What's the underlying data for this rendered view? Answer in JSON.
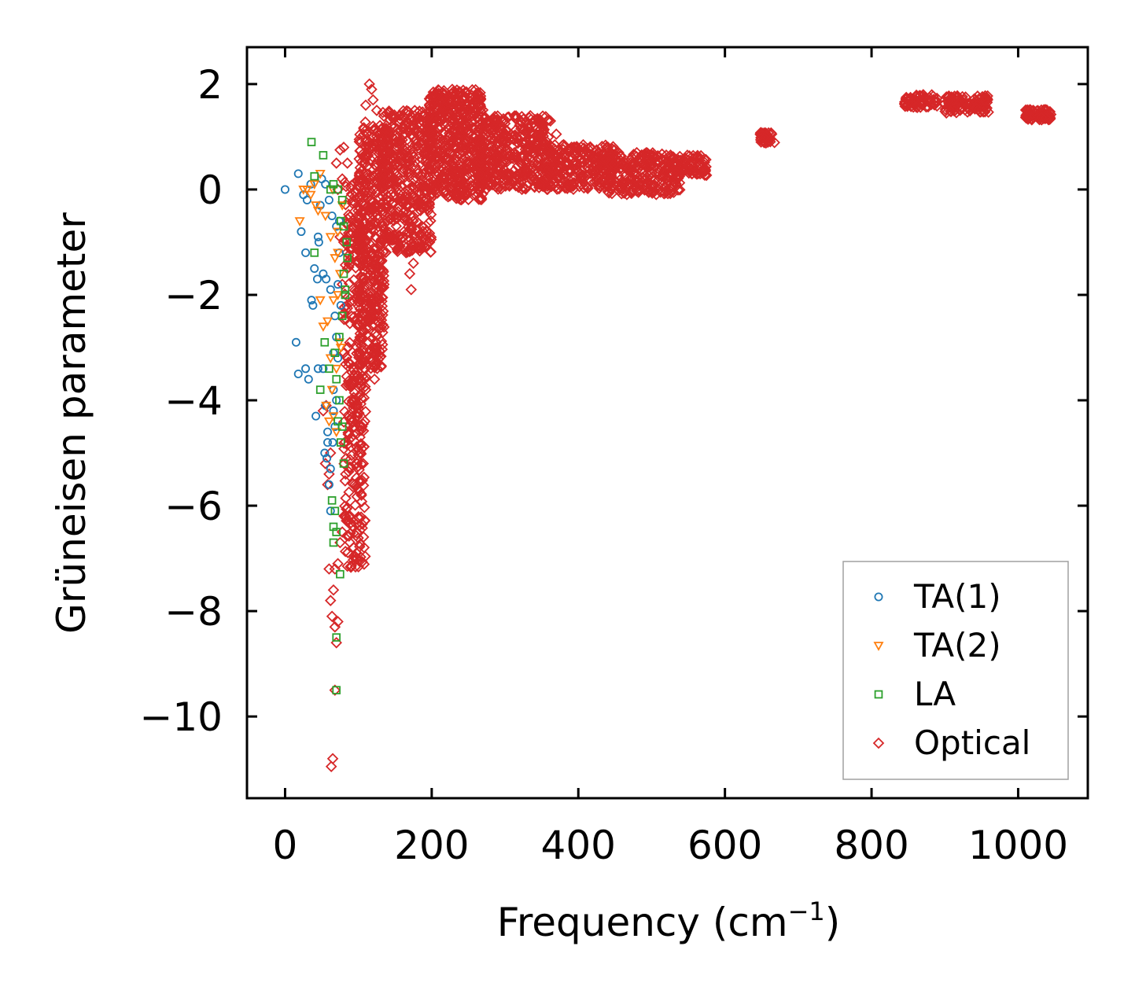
{
  "chart_data": {
    "type": "scatter",
    "xlabel": "Frequency (cm",
    "xlabel_sup": "−1",
    "xlabel_end": ")",
    "ylabel": "Grüneisen parameter",
    "xlim": [
      -52,
      1095
    ],
    "ylim": [
      -11.55,
      2.7
    ],
    "xticks": [
      0,
      200,
      400,
      600,
      800,
      1000
    ],
    "yticks": [
      2,
      0,
      -2,
      -4,
      -6,
      -8,
      -10
    ],
    "ytick_labels": [
      "2",
      "0",
      "−2",
      "−4",
      "−6",
      "−8",
      "−10"
    ],
    "legend_position": "lower-right",
    "series": [
      {
        "name": "TA(1)",
        "color": "#1f77b4",
        "marker": "circle",
        "points": [
          [
            0,
            0
          ],
          [
            18,
            0.3
          ],
          [
            25,
            -0.1
          ],
          [
            30,
            -0.2
          ],
          [
            35,
            0.1
          ],
          [
            22,
            -0.8
          ],
          [
            28,
            -1.2
          ],
          [
            40,
            -1.5
          ],
          [
            45,
            -0.9
          ],
          [
            36,
            -2.1
          ],
          [
            38,
            -2.2
          ],
          [
            15,
            -2.9
          ],
          [
            18,
            -3.5
          ],
          [
            28,
            -3.4
          ],
          [
            32,
            -3.6
          ],
          [
            45,
            -3.4
          ],
          [
            42,
            -4.3
          ],
          [
            52,
            -3.4
          ],
          [
            55,
            -4.1
          ],
          [
            57,
            -5.1
          ],
          [
            60,
            -5.6
          ],
          [
            62,
            -5.3
          ],
          [
            58,
            -4.6
          ],
          [
            65,
            -4.8
          ],
          [
            68,
            -4.5
          ],
          [
            70,
            -4.0
          ],
          [
            66,
            -3.1
          ],
          [
            68,
            -2.4
          ],
          [
            72,
            -1.8
          ],
          [
            74,
            -1.2
          ],
          [
            70,
            -0.7
          ],
          [
            64,
            -0.5
          ],
          [
            60,
            -0.2
          ],
          [
            55,
            0.1
          ],
          [
            50,
            0.2
          ],
          [
            48,
            -0.3
          ],
          [
            52,
            -1.6
          ],
          [
            56,
            -1.7
          ],
          [
            62,
            -1.9
          ],
          [
            66,
            -3.8
          ],
          [
            72,
            -3.2
          ],
          [
            62,
            -6.1
          ],
          [
            58,
            -4.8
          ],
          [
            54,
            -5.0
          ],
          [
            66,
            -4.2
          ],
          [
            70,
            -2.8
          ],
          [
            76,
            -2.2
          ],
          [
            74,
            -0.6
          ],
          [
            44,
            -1.7
          ],
          [
            46,
            -1.0
          ]
        ]
      },
      {
        "name": "TA(2)",
        "color": "#ff7f0e",
        "marker": "triangle-down",
        "points": [
          [
            20,
            -0.6
          ],
          [
            25,
            0.0
          ],
          [
            35,
            -0.1
          ],
          [
            40,
            0.1
          ],
          [
            48,
            0.3
          ],
          [
            45,
            -0.4
          ],
          [
            55,
            -0.5
          ],
          [
            62,
            -0.9
          ],
          [
            68,
            -1.3
          ],
          [
            66,
            -2.1
          ],
          [
            48,
            -2.1
          ],
          [
            52,
            -2.6
          ],
          [
            58,
            -2.5
          ],
          [
            62,
            -3.2
          ],
          [
            70,
            -3.4
          ],
          [
            74,
            -2.9
          ],
          [
            75,
            -1.6
          ],
          [
            72,
            -0.8
          ],
          [
            56,
            -4.1
          ],
          [
            60,
            -4.4
          ],
          [
            66,
            -4.3
          ],
          [
            70,
            -4.6
          ],
          [
            72,
            -1.2
          ],
          [
            65,
            0.0
          ],
          [
            78,
            -0.3
          ],
          [
            42,
            -0.3
          ],
          [
            30,
            0.0
          ],
          [
            64,
            -3.8
          ],
          [
            76,
            -3.0
          ],
          [
            72,
            -2.0
          ]
        ]
      },
      {
        "name": "LA",
        "color": "#2ca02c",
        "marker": "square",
        "points": [
          [
            36,
            0.9
          ],
          [
            52,
            0.65
          ],
          [
            40,
            0.25
          ],
          [
            62,
            0.0
          ],
          [
            66,
            0.1
          ],
          [
            72,
            0.0
          ],
          [
            78,
            -0.2
          ],
          [
            80,
            -0.7
          ],
          [
            84,
            -1.0
          ],
          [
            85,
            -1.3
          ],
          [
            80,
            -1.6
          ],
          [
            82,
            -1.9
          ],
          [
            78,
            -2.4
          ],
          [
            74,
            -2.8
          ],
          [
            54,
            -2.9
          ],
          [
            60,
            -3.4
          ],
          [
            68,
            -3.1
          ],
          [
            70,
            -3.6
          ],
          [
            48,
            -3.8
          ],
          [
            74,
            -4.0
          ],
          [
            78,
            -4.5
          ],
          [
            76,
            -4.8
          ],
          [
            80,
            -5.2
          ],
          [
            64,
            -5.9
          ],
          [
            66,
            -6.4
          ],
          [
            70,
            -6.5
          ],
          [
            66,
            -6.7
          ],
          [
            75,
            -7.3
          ],
          [
            70,
            -8.5
          ],
          [
            70,
            -9.5
          ],
          [
            40,
            -1.2
          ],
          [
            76,
            -0.6
          ],
          [
            82,
            -2.0
          ],
          [
            72,
            -4.4
          ],
          [
            68,
            -6.1
          ]
        ]
      },
      {
        "name": "Optical",
        "color": "#d62728",
        "marker": "diamond",
        "dense_regions": [
          {
            "x": [
              80,
              110
            ],
            "y": [
              -7.2,
              0.2
            ],
            "count": 340
          },
          {
            "x": [
              100,
              135
            ],
            "y": [
              -3.4,
              1.3
            ],
            "count": 400
          },
          {
            "x": [
              130,
              200
            ],
            "y": [
              -1.2,
              1.5
            ],
            "count": 460
          },
          {
            "x": [
              195,
              270
            ],
            "y": [
              -0.2,
              1.9
            ],
            "count": 520
          },
          {
            "x": [
              265,
              360
            ],
            "y": [
              0.0,
              1.4
            ],
            "count": 420
          },
          {
            "x": [
              355,
              450
            ],
            "y": [
              0.0,
              0.85
            ],
            "count": 260
          },
          {
            "x": [
              440,
              540
            ],
            "y": [
              -0.1,
              0.7
            ],
            "count": 260
          },
          {
            "x": [
              535,
              575
            ],
            "y": [
              0.25,
              0.65
            ],
            "count": 70
          },
          {
            "x": [
              648,
              668
            ],
            "y": [
              0.88,
              1.08
            ],
            "count": 40
          },
          {
            "x": [
              845,
              890
            ],
            "y": [
              1.55,
              1.8
            ],
            "count": 70
          },
          {
            "x": [
              895,
              960
            ],
            "y": [
              1.45,
              1.78
            ],
            "count": 110
          },
          {
            "x": [
              1010,
              1045
            ],
            "y": [
              1.32,
              1.52
            ],
            "count": 70
          }
        ],
        "points": [
          [
            115,
            2.0
          ],
          [
            118,
            1.9
          ],
          [
            110,
            1.6
          ],
          [
            120,
            1.7
          ],
          [
            125,
            1.5
          ],
          [
            120,
            1.2
          ],
          [
            65,
            -10.8
          ],
          [
            63,
            -10.95
          ],
          [
            68,
            -9.5
          ],
          [
            70,
            -8.6
          ],
          [
            68,
            -8.3
          ],
          [
            72,
            -8.2
          ],
          [
            62,
            -7.8
          ],
          [
            64,
            -8.1
          ],
          [
            66,
            -7.6
          ],
          [
            68,
            -7.2
          ],
          [
            60,
            -7.2
          ],
          [
            72,
            -7.1
          ],
          [
            75,
            -6.7
          ],
          [
            78,
            -6.5
          ],
          [
            58,
            -5.6
          ],
          [
            60,
            -5.4
          ],
          [
            62,
            -5.0
          ],
          [
            55,
            -5.2
          ],
          [
            52,
            -4.2
          ],
          [
            56,
            -4.1
          ],
          [
            75,
            -0.9
          ],
          [
            80,
            -1.0
          ],
          [
            85,
            -1.5
          ],
          [
            78,
            -1.8
          ],
          [
            95,
            -5.6
          ],
          [
            98,
            -5.2
          ],
          [
            100,
            -5.7
          ],
          [
            105,
            -4.5
          ],
          [
            102,
            -3.9
          ],
          [
            110,
            -3.8
          ],
          [
            122,
            -3.6
          ],
          [
            125,
            -2.5
          ],
          [
            128,
            -2.1
          ],
          [
            135,
            -1.8
          ],
          [
            162,
            -0.8
          ],
          [
            168,
            -0.9
          ],
          [
            175,
            -0.6
          ],
          [
            165,
            -1.2
          ],
          [
            170,
            -1.6
          ],
          [
            175,
            -1.4
          ],
          [
            172,
            -1.9
          ],
          [
            180,
            -0.3
          ],
          [
            190,
            -0.2
          ],
          [
            200,
            -0.1
          ],
          [
            362,
            1.3
          ],
          [
            370,
            1.05
          ],
          [
            380,
            0.85
          ],
          [
            395,
            0.8
          ],
          [
            410,
            0.75
          ],
          [
            425,
            0.75
          ],
          [
            440,
            0.75
          ],
          [
            455,
            0.7
          ],
          [
            330,
            1.1
          ],
          [
            300,
            1.25
          ],
          [
            255,
            1.6
          ],
          [
            245,
            1.7
          ],
          [
            240,
            1.55
          ],
          [
            228,
            1.9
          ],
          [
            80,
            0.8
          ],
          [
            75,
            0.75
          ],
          [
            85,
            0.5
          ],
          [
            70,
            0.5
          ],
          [
            78,
            0.2
          ],
          [
            72,
            0.0
          ]
        ]
      }
    ]
  }
}
